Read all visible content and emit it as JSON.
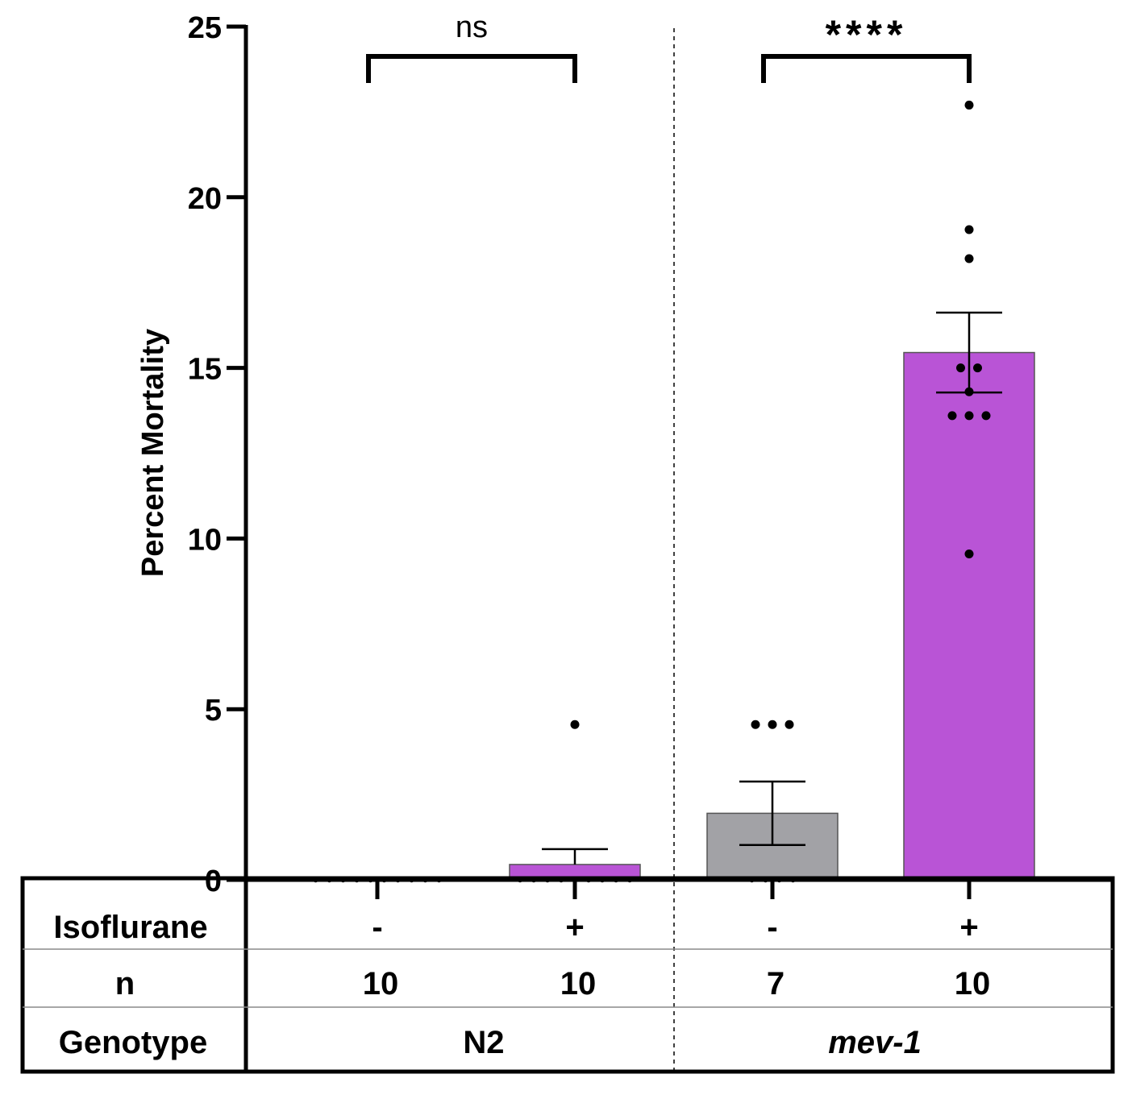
{
  "chart_data": {
    "type": "bar",
    "ylabel": "Percent Mortality",
    "ylim": [
      0,
      25
    ],
    "yticks": [
      0,
      5,
      10,
      15,
      20,
      25
    ],
    "colors": {
      "no_isoflurane": "#a2a2a6",
      "isoflurane": "#b954d6"
    },
    "bars": [
      {
        "isoflurane": "-",
        "n": "10",
        "genotype": "N2",
        "mean": 0.0,
        "sem": 0.0,
        "points": [
          0,
          0,
          0,
          0,
          0,
          0,
          0,
          0,
          0,
          0
        ]
      },
      {
        "isoflurane": "+",
        "n": "10",
        "genotype": "N2",
        "mean": 0.45,
        "sem": 0.45,
        "points": [
          4.55,
          0,
          0,
          0,
          0,
          0,
          0,
          0,
          0,
          0
        ]
      },
      {
        "isoflurane": "-",
        "n": "7",
        "genotype": "mev-1",
        "mean": 1.95,
        "sem": 0.93,
        "points": [
          4.55,
          4.55,
          4.55,
          0,
          0,
          0,
          0
        ]
      },
      {
        "isoflurane": "+",
        "n": "10",
        "genotype": "mev-1",
        "mean": 15.45,
        "sem": 1.17,
        "points": [
          22.7,
          19.05,
          18.2,
          15.0,
          15.0,
          14.3,
          13.6,
          13.6,
          13.6,
          9.55
        ]
      }
    ],
    "significance": [
      {
        "from": 0,
        "to": 1,
        "label": "ns"
      },
      {
        "from": 2,
        "to": 3,
        "label": "****"
      }
    ],
    "table": {
      "row_labels": {
        "isoflurane": "Isoflurane",
        "n": "n",
        "genotype": "Genotype"
      },
      "genotypes": [
        {
          "label": "N2",
          "italic": false
        },
        {
          "label": "mev-1",
          "italic": true
        }
      ]
    }
  }
}
